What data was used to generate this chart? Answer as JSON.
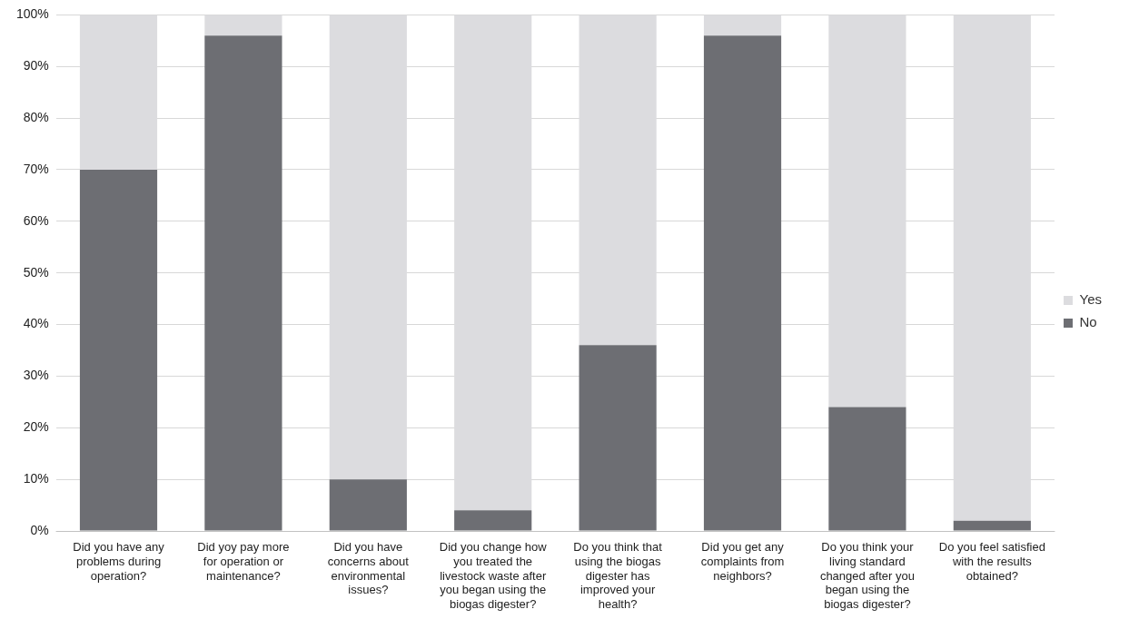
{
  "chart_data": {
    "type": "bar",
    "stacked": true,
    "categories": [
      "Did you have any problems during operation?",
      "Did yoy pay more for operation or maintenance?",
      "Did you have concerns about environmental issues?",
      "Did you change how you treated the livestock waste after you began using the biogas digester?",
      "Do you think that using the biogas digester has improved your health?",
      "Did you get any complaints from neighbors?",
      "Do you think your living standard changed after you began using the biogas digester?",
      "Do you feel satisfied with the results obtained?"
    ],
    "series": [
      {
        "name": "No",
        "color": "#6d6e73",
        "values": [
          70,
          96,
          10,
          4,
          36,
          96,
          24,
          2
        ]
      },
      {
        "name": "Yes",
        "color": "#dcdcdf",
        "values": [
          30,
          4,
          90,
          96,
          64,
          4,
          76,
          98
        ]
      }
    ],
    "ylim": [
      0,
      100
    ],
    "yticks": [
      {
        "value": 0,
        "label": "0%"
      },
      {
        "value": 10,
        "label": "10%"
      },
      {
        "value": 20,
        "label": "20%"
      },
      {
        "value": 30,
        "label": "30%"
      },
      {
        "value": 40,
        "label": "40%"
      },
      {
        "value": 50,
        "label": "50%"
      },
      {
        "value": 60,
        "label": "60%"
      },
      {
        "value": 70,
        "label": "70%"
      },
      {
        "value": 80,
        "label": "80%"
      },
      {
        "value": 90,
        "label": "90%"
      },
      {
        "value": 100,
        "label": "100%"
      }
    ],
    "grid": "y",
    "legend": "right"
  }
}
